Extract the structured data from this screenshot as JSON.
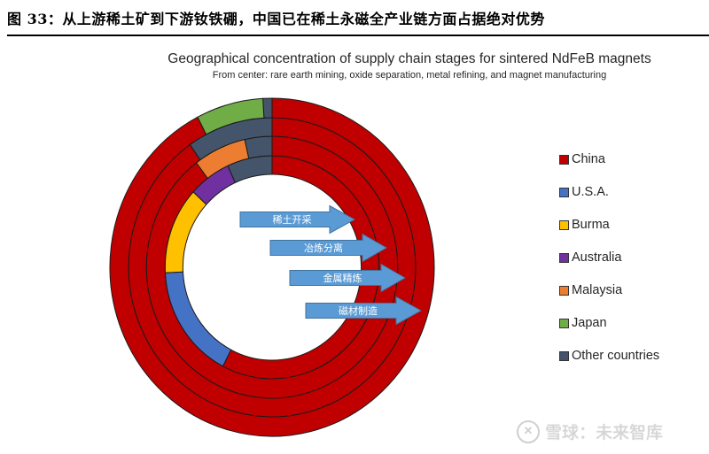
{
  "figure": {
    "title": "图 33：从上游稀土矿到下游钕铁硼，中国已在稀土永磁全产业链方面占据绝对优势"
  },
  "chart_data": {
    "type": "donut",
    "title": "Geographical concentration of supply chain stages for sintered NdFeB magnets",
    "subtitle": "From center: rare earth mining, oxide separation, metal refining, and magnet manufacturing",
    "legend_position": "right",
    "countries": [
      {
        "name": "China",
        "color": "#C00000"
      },
      {
        "name": "U.S.A.",
        "color": "#4472C4"
      },
      {
        "name": "Burma",
        "color": "#FFC000"
      },
      {
        "name": "Australia",
        "color": "#7030A0"
      },
      {
        "name": "Malaysia",
        "color": "#ED7D31"
      },
      {
        "name": "Japan",
        "color": "#70AD47"
      },
      {
        "name": "Other countries",
        "color": "#44546A"
      }
    ],
    "rings": [
      {
        "stage": "rare earth mining",
        "label_cn": "稀土开采",
        "segments": [
          {
            "country": "Other countries",
            "value": 6.8
          },
          {
            "country": "Australia",
            "value": 6.4
          },
          {
            "country": "Burma",
            "value": 12.6
          },
          {
            "country": "U.S.A.",
            "value": 16.6
          },
          {
            "country": "China",
            "value": 57.6
          }
        ]
      },
      {
        "stage": "oxide separation",
        "label_cn": "冶炼分离",
        "segments": [
          {
            "country": "Other countries",
            "value": 3.5
          },
          {
            "country": "Malaysia",
            "value": 6.8
          },
          {
            "country": "China",
            "value": 89.7
          }
        ]
      },
      {
        "stage": "metal refining",
        "label_cn": "金属精炼",
        "segments": [
          {
            "country": "Other countries",
            "value": 9.7
          },
          {
            "country": "China",
            "value": 90.3
          }
        ]
      },
      {
        "stage": "magnet manufacturing",
        "label_cn": "磁材制造",
        "segments": [
          {
            "country": "Other countries",
            "value": 0.9
          },
          {
            "country": "Japan",
            "value": 6.7
          },
          {
            "country": "China",
            "value": 92.4
          }
        ]
      }
    ],
    "direction": "counter-clockwise from 12 o'clock for non-China segments"
  },
  "watermark": {
    "logo": "✕",
    "text": "雪球：未来智库"
  }
}
